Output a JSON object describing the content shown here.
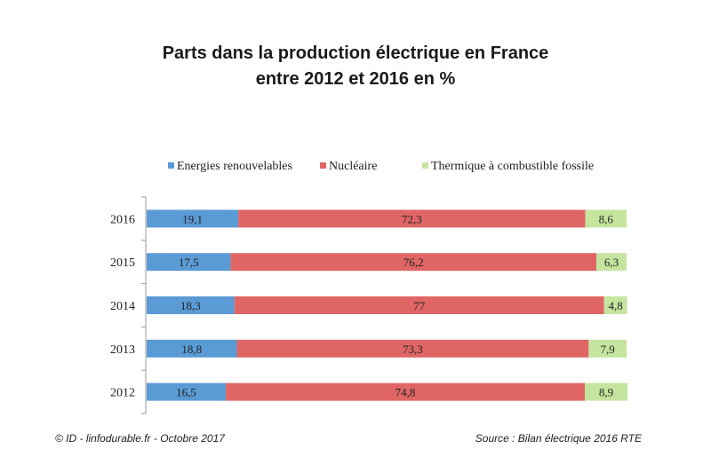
{
  "title_line1": "Parts dans la production électrique en France",
  "title_line2": "entre 2012 et 2016 en %",
  "footer_left": "© ID - linfodurable.fr - Octobre 2017",
  "footer_right": "Source : Bilan électrique 2016 RTE",
  "chart_data": {
    "type": "bar",
    "orientation": "horizontal",
    "stacked": true,
    "categories": [
      "2016",
      "2015",
      "2014",
      "2013",
      "2012"
    ],
    "series": [
      {
        "name": "Energies renouvelables",
        "color": "#5b9bd5",
        "values": [
          19.1,
          17.5,
          18.3,
          18.8,
          16.5
        ],
        "labels": [
          "19,1",
          "17,5",
          "18,3",
          "18,8",
          "16,5"
        ]
      },
      {
        "name": "Nucléaire",
        "color": "#e06666",
        "values": [
          72.3,
          76.2,
          77,
          73.3,
          74.8
        ],
        "labels": [
          "72,3",
          "76,2",
          "77",
          "73,3",
          "74,8"
        ]
      },
      {
        "name": "Thermique à combustible fossile",
        "color": "#c5e59e",
        "values": [
          8.6,
          6.3,
          4.8,
          7.9,
          8.9
        ],
        "labels": [
          "8,6",
          "6,3",
          "4,8",
          "7,9",
          "8,9"
        ]
      }
    ],
    "legend_position": "top",
    "grid": false
  }
}
